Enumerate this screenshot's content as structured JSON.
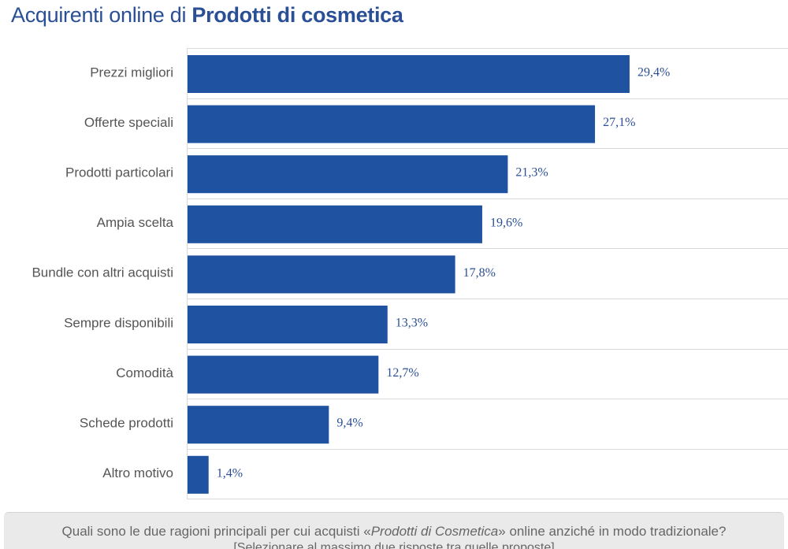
{
  "title": {
    "prefix": "Acquirenti online di",
    "subject": "Prodotti di cosmetica"
  },
  "colors": {
    "bar": "#1f52a0",
    "title": "#2a4f95",
    "value_label": "#2a4f95",
    "category_label": "#555555",
    "gridline": "#d9d9d9"
  },
  "chart_data": {
    "type": "bar",
    "orientation": "horizontal",
    "title": "Acquirenti online di Prodotti di cosmetica",
    "categories": [
      "Prezzi migliori",
      "Offerte speciali",
      "Prodotti particolari",
      "Ampia scelta",
      "Bundle con altri acquisti",
      "Sempre disponibili",
      "Comodità",
      "Schede prodotti",
      "Altro motivo"
    ],
    "values": [
      29.4,
      27.1,
      21.3,
      19.6,
      17.8,
      13.3,
      12.7,
      9.4,
      1.4
    ],
    "value_labels": [
      "29,4%",
      "27,1%",
      "21,3%",
      "19,6%",
      "17,8%",
      "13,3%",
      "12,7%",
      "9,4%",
      "1,4%"
    ],
    "xlim": [
      0,
      40
    ],
    "unit": "%",
    "grid": "horizontal separators",
    "legend": "none"
  },
  "footer": {
    "question_before": "Quali sono le due ragioni principali per cui acquisti «",
    "question_em": "Prodotti di Cosmetica",
    "question_after": "» online anziché in modo tradizionale?",
    "note": "[Selezionare al massimo due risposte tra quelle proposte]"
  }
}
